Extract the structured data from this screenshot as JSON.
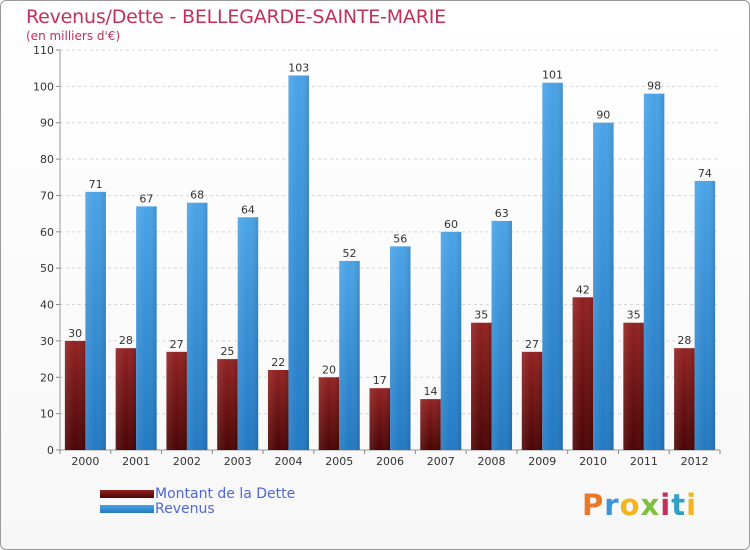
{
  "chart_data": {
    "type": "bar",
    "title": "Revenus/Dette - BELLEGARDE-SAINTE-MARIE",
    "subtitle": "(en milliers d'€)",
    "categories": [
      "2000",
      "2001",
      "2002",
      "2003",
      "2004",
      "2005",
      "2006",
      "2007",
      "2008",
      "2009",
      "2010",
      "2011",
      "2012"
    ],
    "series": [
      {
        "name": "Montant de la Dette",
        "color": "#7a1515",
        "values": [
          30,
          28,
          27,
          25,
          22,
          20,
          17,
          14,
          35,
          27,
          42,
          35,
          28
        ]
      },
      {
        "name": "Revenus",
        "color": "#3d93d8",
        "values": [
          71,
          67,
          68,
          64,
          103,
          52,
          56,
          60,
          63,
          101,
          90,
          98,
          74
        ]
      }
    ],
    "ylim": [
      0,
      110
    ],
    "yticks": [
      0,
      10,
      20,
      30,
      40,
      50,
      60,
      70,
      80,
      90,
      100,
      110
    ],
    "grid": true,
    "legend_position": "bottom-left"
  },
  "logo": {
    "text": "Proxiti"
  }
}
